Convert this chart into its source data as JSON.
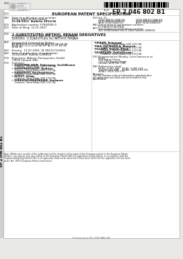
{
  "patent_number": "EP 2 046 802 B1",
  "doc_type": "EUROPEAN PATENT SPECIFICATION",
  "title_en": "2-SUBSTITUTED METHYL PENAM DERIVATIVES",
  "title_de": "2-SUBSTITUIERTE METHYL-PENAM-DERIVATE",
  "title_fr": "DÉRIVÉS  2-SUBSTITUÉS DU MÉTHYL PÉNAM",
  "f45": "Date of publication and mention\nof the grant of the patent:\n21.08.2013  Bulletin 2013/34",
  "f51_label": "Int. Cl.",
  "f51_lines": [
    [
      "C07D 499/21 (2006.01)",
      "C07D 499/32 (2006.01)"
    ],
    [
      "C07D 499/04 (2006.01)",
      "C07D 499/44 (2006.01)"
    ],
    [
      "A61K 31/43 (2006.01)",
      "A61P 31/02 (2006.01)"
    ]
  ],
  "f21": "Application number: 07804095.3",
  "f86": "International application number:\nPCT/IB2007/001941",
  "f22": "Date of filing: 11.07.2007",
  "f87": "International publication number:\nWO 2008/010448 (24.01.2008 Gazette 2008/04)",
  "f84": "Designated Contracting States:\nAT BE BG CH CY CZ DE DK EE ES FI FR GB GR\nHU IE IS IT LI LT LU LV MC MT NL PL PT RO SE\nSI SK TR",
  "f30": "Priority:  13.07.2006  IN CN12173/2006",
  "f43": "Date of publication of application:\n15.04.2009  Bulletin 2009/16",
  "f73": "Proprietor: Albieza Therapeutics GmbH\n79539 Lörrach (DE)",
  "f72_title": "Inventors:",
  "f72_left": [
    [
      "UDAYAMPALAYAM, Palanisamy, Senthilkumar",
      "Chennai, Tamil Nadu 600 119 (IN)"
    ],
    [
      "GANAPARAKASAM, Andrews",
      "Chennai, Tamil Nadu 600 119 (IN)"
    ],
    [
      "GANAPATHY, Panchapakasan",
      "Chennai, Tamil Nadu 600 119 (IN)"
    ],
    [
      "MUKUT, Golam",
      "Chennai, Tamil Nadu 600 119 (IN)"
    ],
    [
      "VENKATASUBRAMANIAN, Hariharan",
      "Chennai, Tamil Nadu 600 119 (IN)"
    ]
  ],
  "f72_right": [
    [
      "SRIRAM, Rajagopal",
      "Chennai, Tamil Nadu 600 119 (IN)"
    ],
    [
      "PAUL-SATYASEELA, Maneesh",
      "Chennai, Tamil Nadu 600 119 (IN)"
    ],
    [
      "SOLANKI, Shashi, Singh",
      "Chennai, Tamil Nadu 600 119 (IN)"
    ],
    [
      "DEVARAJAN, Sathishkumar",
      "Chennai, Tamil Nadu 600 119 (IN)"
    ]
  ],
  "f74": "Representative: Murphy, Colm Damien et al\nIpulse\nCarrington House\n126-130 Regent Street\nLondon W1B 5SE (GB)",
  "f56_label": "References cited:",
  "f56_lines": [
    [
      "EP-A1- 0 267 449",
      "EP-A1- 0 367 124"
    ],
    [
      "JP-A- 60 215 688",
      "US-A1- 2005 070 705"
    ],
    [
      "US-A1- 2005 228 175",
      ""
    ]
  ],
  "remarks": "Remarks:\nThe file contains no/local information submitted after\nthe application was filed and not included in this\nspecification",
  "footer": "Note: Within nine months of the publication of the mention of the grant of the European patent in the European Patent\nBulletin, any person may give notice to the European Patent Office of opposition to that patent, in accordance with the\nImplementing Regulations. Notice of opposition shall not be deemed to have been filed until the opposition fee has been\npaid. (Art. 99(1) European Patent Convention).",
  "printed_by": "Printed by Jouve (FR), 75001 PARIS (FR)",
  "side_text": "EP 2 046 802 B1",
  "logo_lines": [
    "Europäisches",
    "Patentamt",
    "European",
    "Patent Office",
    "Office européen",
    "des brevets"
  ],
  "col_split": 132,
  "lmargin": 6,
  "lcol_text": 17,
  "rcol_label": 134,
  "rcol_text": 142
}
